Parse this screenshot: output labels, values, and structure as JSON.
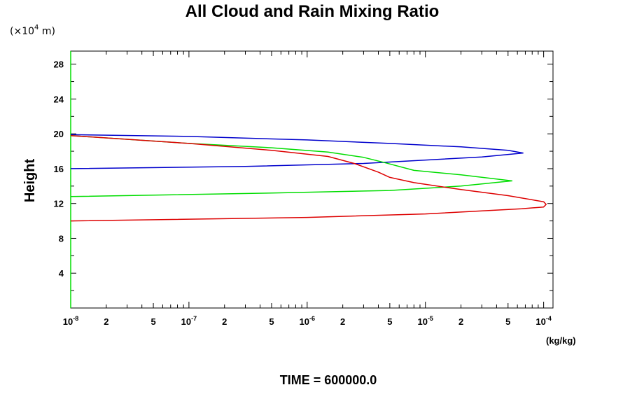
{
  "chart_data": {
    "type": "line",
    "title": "All Cloud and Rain Mixing Ratio",
    "ylabel": "Height",
    "yunit_prefix": "(×10",
    "yunit_exp": "4",
    "yunit_suffix": " m)",
    "xunit": "(kg/kg)",
    "xscale": "log",
    "xlim": [
      1e-08,
      0.00012
    ],
    "ylim": [
      0,
      29.5
    ],
    "yticks": [
      4,
      8,
      12,
      16,
      20,
      24,
      28
    ],
    "ytick_labels": [
      "4",
      "8",
      "12",
      "16",
      "20",
      "24",
      "28"
    ],
    "xtick_labels": [
      {
        "value": 1e-08,
        "base": "10",
        "exp": "-8"
      },
      {
        "value": 2e-08,
        "base": "2",
        "exp": ""
      },
      {
        "value": 5e-08,
        "base": "5",
        "exp": ""
      },
      {
        "value": 1e-07,
        "base": "10",
        "exp": "-7"
      },
      {
        "value": 2e-07,
        "base": "2",
        "exp": ""
      },
      {
        "value": 5e-07,
        "base": "5",
        "exp": ""
      },
      {
        "value": 1e-06,
        "base": "10",
        "exp": "-6"
      },
      {
        "value": 2e-06,
        "base": "2",
        "exp": ""
      },
      {
        "value": 5e-06,
        "base": "5",
        "exp": ""
      },
      {
        "value": 1e-05,
        "base": "10",
        "exp": "-5"
      },
      {
        "value": 2e-05,
        "base": "2",
        "exp": ""
      },
      {
        "value": 5e-05,
        "base": "5",
        "exp": ""
      },
      {
        "value": 0.0001,
        "base": "10",
        "exp": "-4"
      }
    ],
    "grid": false,
    "series": [
      {
        "color": "#0000cc",
        "points": [
          [
            1e-08,
            16.0
          ],
          [
            3e-07,
            16.25
          ],
          [
            3e-06,
            16.6
          ],
          [
            3e-05,
            17.35
          ],
          [
            6.7e-05,
            17.8
          ],
          [
            5e-05,
            18.1
          ],
          [
            2e-05,
            18.5
          ],
          [
            5e-06,
            18.9
          ],
          [
            1e-06,
            19.3
          ],
          [
            1e-07,
            19.7
          ],
          [
            1e-08,
            19.9
          ]
        ]
      },
      {
        "color": "#00dd00",
        "points": [
          [
            1e-08,
            12.8
          ],
          [
            5e-07,
            13.2
          ],
          [
            5e-06,
            13.5
          ],
          [
            2e-05,
            14.0
          ],
          [
            5.4e-05,
            14.6
          ],
          [
            2e-05,
            15.3
          ],
          [
            8e-06,
            15.8
          ],
          [
            4.5e-06,
            16.7
          ],
          [
            3e-06,
            17.3
          ],
          [
            1.5e-06,
            17.9
          ],
          [
            5e-07,
            18.4
          ],
          [
            1e-07,
            18.9
          ],
          [
            1e-08,
            19.8
          ]
        ]
      },
      {
        "color": "#dd0000",
        "points": [
          [
            1e-08,
            10.0
          ],
          [
            1e-06,
            10.4
          ],
          [
            1e-05,
            10.8
          ],
          [
            6.5e-05,
            11.4
          ],
          [
            0.0001,
            11.6
          ],
          [
            0.000105,
            11.9
          ],
          [
            0.0001,
            12.2
          ],
          [
            5e-05,
            12.9
          ],
          [
            2e-05,
            13.6
          ],
          [
            8e-06,
            14.4
          ],
          [
            5e-06,
            15.0
          ],
          [
            4e-06,
            15.6
          ],
          [
            2.5e-06,
            16.6
          ],
          [
            1.5e-06,
            17.4
          ],
          [
            5e-07,
            18.1
          ],
          [
            1e-07,
            18.9
          ],
          [
            1e-08,
            19.8
          ]
        ]
      }
    ],
    "annotation_prefix": "TIME = ",
    "annotation_value": "600000.0"
  }
}
